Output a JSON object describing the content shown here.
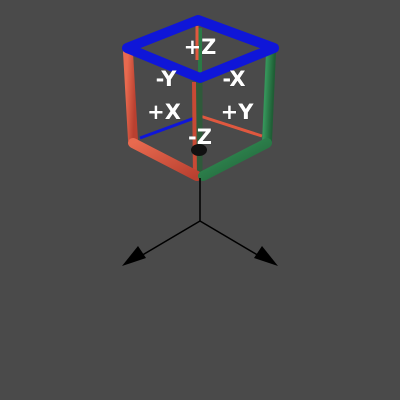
{
  "viewcube": {
    "labels": {
      "pos_z": "+Z",
      "neg_y": "-Y",
      "neg_x": "-X",
      "pos_x": "+X",
      "pos_y": "+Y",
      "neg_z": "-Z"
    },
    "edge_colors": {
      "x": "#e0583f",
      "y": "#2a7a45",
      "z": "#0f16d8"
    },
    "background": "#4a4a4a"
  },
  "axis_gizmo": {
    "color": "#000000",
    "arrow_icons": [
      "arrow-left-icon",
      "arrow-right-icon"
    ]
  }
}
